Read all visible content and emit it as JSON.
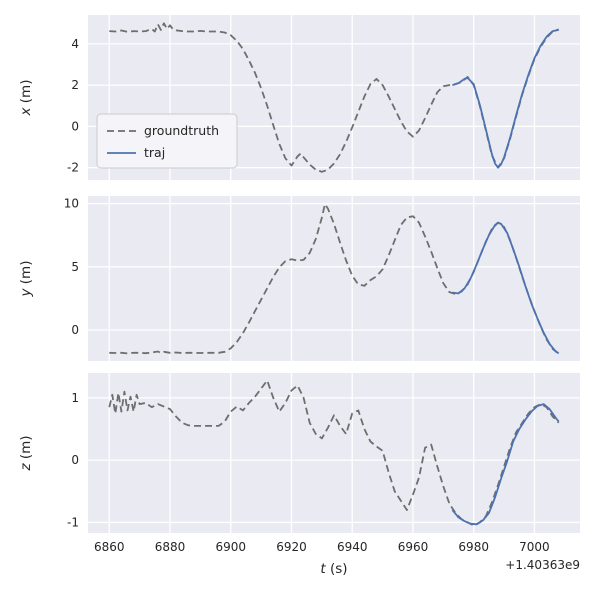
{
  "figure": {
    "background": "#ffffff",
    "axes_background": "#eaeaf2",
    "grid_color": "#ffffff",
    "text_color": "#262626",
    "xlabel_var": "t",
    "xlabel_unit": " (s)",
    "offset_text": "+1.40363e9",
    "x_range": [
      6853,
      7015
    ],
    "xticks": [
      6860,
      6880,
      6900,
      6920,
      6940,
      6960,
      6980,
      7000
    ]
  },
  "legend": {
    "entries": [
      {
        "label": "groundtruth",
        "color": "#6e6e6e",
        "dash": "7 4"
      },
      {
        "label": "traj",
        "color": "#4c72b0",
        "dash": ""
      }
    ]
  },
  "chart_data": [
    {
      "type": "line",
      "ylabel_var": "x",
      "ylabel_unit": " (m)",
      "yticks": [
        -2,
        0,
        2,
        4
      ],
      "y_range": [
        -2.6,
        5.4
      ],
      "series": [
        {
          "name": "groundtruth",
          "color": "#6e6e6e",
          "dash": "7 4",
          "t": [
            6860,
            6862,
            6864,
            6866,
            6868,
            6870,
            6872,
            6874,
            6875,
            6876,
            6877,
            6878,
            6879,
            6880,
            6881,
            6882,
            6884,
            6886,
            6888,
            6890,
            6892,
            6894,
            6896,
            6898,
            6900,
            6902,
            6904,
            6906,
            6908,
            6910,
            6912,
            6914,
            6916,
            6918,
            6920,
            6922,
            6923,
            6924,
            6926,
            6928,
            6930,
            6932,
            6934,
            6936,
            6938,
            6940,
            6942,
            6944,
            6946,
            6948,
            6950,
            6952,
            6954,
            6956,
            6958,
            6960,
            6962,
            6964,
            6966,
            6968,
            6970,
            6972,
            6974,
            6976,
            6978,
            6980,
            6982,
            6984,
            6986,
            6988,
            6990,
            6992,
            6994,
            6996,
            6998,
            7000,
            7002,
            7004,
            7006,
            7008
          ],
          "v": [
            4.62,
            4.6,
            4.65,
            4.58,
            4.62,
            4.6,
            4.62,
            4.72,
            4.6,
            4.95,
            4.68,
            5.0,
            4.72,
            4.9,
            4.7,
            4.66,
            4.62,
            4.6,
            4.6,
            4.63,
            4.6,
            4.6,
            4.6,
            4.55,
            4.42,
            4.15,
            3.75,
            3.2,
            2.6,
            1.85,
            1.0,
            0.05,
            -0.85,
            -1.55,
            -1.9,
            -1.45,
            -1.32,
            -1.5,
            -1.85,
            -2.1,
            -2.2,
            -2.1,
            -1.8,
            -1.35,
            -0.75,
            -0.05,
            0.7,
            1.45,
            2.05,
            2.3,
            2.0,
            1.45,
            0.85,
            0.25,
            -0.25,
            -0.5,
            -0.2,
            0.4,
            1.05,
            1.65,
            1.95,
            2.0,
            2.05,
            2.15,
            2.4,
            2.0,
            1.0,
            -0.2,
            -1.4,
            -2.0,
            -1.55,
            -0.6,
            0.5,
            1.55,
            2.45,
            3.25,
            3.85,
            4.3,
            4.6,
            4.7
          ]
        },
        {
          "name": "traj",
          "color": "#4c72b0",
          "dash": "",
          "t": [
            6973,
            6975,
            6977,
            6978,
            6980,
            6982,
            6984,
            6986,
            6987,
            6988,
            6989,
            6990,
            6992,
            6994,
            6996,
            6998,
            7000,
            7002,
            7004,
            7006,
            7008
          ],
          "v": [
            2.0,
            2.1,
            2.3,
            2.35,
            2.05,
            1.05,
            -0.15,
            -1.35,
            -1.8,
            -2.0,
            -1.85,
            -1.5,
            -0.55,
            0.55,
            1.6,
            2.5,
            3.3,
            3.9,
            4.35,
            4.62,
            4.68
          ]
        }
      ]
    },
    {
      "type": "line",
      "ylabel_var": "y",
      "ylabel_unit": " (m)",
      "yticks": [
        0,
        5,
        10
      ],
      "y_range": [
        -2.45,
        10.6
      ],
      "series": [
        {
          "name": "groundtruth",
          "color": "#6e6e6e",
          "dash": "7 4",
          "t": [
            6860,
            6862,
            6864,
            6866,
            6868,
            6870,
            6872,
            6874,
            6876,
            6877,
            6878,
            6880,
            6882,
            6884,
            6886,
            6888,
            6890,
            6892,
            6894,
            6896,
            6898,
            6900,
            6902,
            6904,
            6906,
            6908,
            6910,
            6912,
            6914,
            6916,
            6918,
            6920,
            6922,
            6924,
            6926,
            6928,
            6930,
            6931,
            6932,
            6934,
            6936,
            6938,
            6940,
            6942,
            6944,
            6946,
            6948,
            6950,
            6952,
            6954,
            6956,
            6958,
            6960,
            6962,
            6964,
            6966,
            6968,
            6970,
            6972,
            6974,
            6976,
            6978,
            6980,
            6982,
            6984,
            6986,
            6988,
            6990,
            6992,
            6994,
            6996,
            6998,
            7000,
            7002,
            7004,
            7006,
            7008
          ],
          "v": [
            -1.8,
            -1.82,
            -1.8,
            -1.85,
            -1.8,
            -1.8,
            -1.83,
            -1.78,
            -1.7,
            -1.82,
            -1.72,
            -1.8,
            -1.78,
            -1.82,
            -1.8,
            -1.8,
            -1.82,
            -1.8,
            -1.8,
            -1.8,
            -1.72,
            -1.45,
            -0.95,
            -0.25,
            0.6,
            1.5,
            2.4,
            3.3,
            4.2,
            4.95,
            5.45,
            5.6,
            5.5,
            5.55,
            6.1,
            7.2,
            8.9,
            9.95,
            9.6,
            8.4,
            6.9,
            5.5,
            4.3,
            3.6,
            3.5,
            3.95,
            4.25,
            4.8,
            5.9,
            7.1,
            8.3,
            8.9,
            9.0,
            8.5,
            7.4,
            6.2,
            4.9,
            3.7,
            3.0,
            2.85,
            3.05,
            3.6,
            4.6,
            5.8,
            7.0,
            8.0,
            8.5,
            8.15,
            7.1,
            5.7,
            4.2,
            2.8,
            1.5,
            0.3,
            -0.75,
            -1.5,
            -1.85
          ]
        },
        {
          "name": "traj",
          "color": "#4c72b0",
          "dash": "",
          "t": [
            6973,
            6975,
            6977,
            6979,
            6981,
            6983,
            6985,
            6987,
            6988,
            6989,
            6991,
            6993,
            6995,
            6997,
            6999,
            7001,
            7003,
            7005,
            7007,
            7008
          ],
          "v": [
            2.95,
            2.9,
            3.3,
            4.1,
            5.2,
            6.4,
            7.5,
            8.3,
            8.5,
            8.4,
            7.7,
            6.4,
            5.0,
            3.5,
            2.1,
            0.9,
            -0.2,
            -1.1,
            -1.7,
            -1.85
          ]
        }
      ]
    },
    {
      "type": "line",
      "ylabel_var": "z",
      "ylabel_unit": " (m)",
      "yticks": [
        -1,
        0,
        1
      ],
      "y_range": [
        -1.17,
        1.4
      ],
      "series": [
        {
          "name": "groundtruth",
          "color": "#6e6e6e",
          "dash": "7 4",
          "t": [
            6860,
            6861,
            6862,
            6863,
            6864,
            6865,
            6866,
            6867,
            6868,
            6869,
            6870,
            6872,
            6874,
            6876,
            6878,
            6880,
            6882,
            6884,
            6886,
            6888,
            6890,
            6892,
            6894,
            6896,
            6898,
            6900,
            6902,
            6904,
            6906,
            6908,
            6910,
            6912,
            6914,
            6916,
            6918,
            6920,
            6922,
            6924,
            6926,
            6928,
            6930,
            6932,
            6934,
            6936,
            6938,
            6940,
            6942,
            6944,
            6946,
            6948,
            6950,
            6952,
            6954,
            6956,
            6958,
            6960,
            6962,
            6964,
            6966,
            6968,
            6970,
            6972,
            6974,
            6976,
            6978,
            6980,
            6982,
            6984,
            6986,
            6988,
            6990,
            6992,
            6994,
            6996,
            6998,
            7000,
            7002,
            7004,
            7006,
            7008
          ],
          "v": [
            0.85,
            1.05,
            0.75,
            1.08,
            0.78,
            1.1,
            0.8,
            1.02,
            0.78,
            1.05,
            0.9,
            0.92,
            0.85,
            0.9,
            0.86,
            0.82,
            0.7,
            0.6,
            0.56,
            0.55,
            0.55,
            0.55,
            0.55,
            0.55,
            0.62,
            0.78,
            0.86,
            0.8,
            0.92,
            1.02,
            1.15,
            1.28,
            1.0,
            0.78,
            0.92,
            1.12,
            1.2,
            1.0,
            0.6,
            0.42,
            0.35,
            0.52,
            0.72,
            0.55,
            0.42,
            0.75,
            0.8,
            0.5,
            0.3,
            0.22,
            0.15,
            -0.2,
            -0.5,
            -0.65,
            -0.8,
            -0.55,
            -0.28,
            0.2,
            0.25,
            -0.1,
            -0.42,
            -0.7,
            -0.85,
            -0.95,
            -1.0,
            -1.05,
            -1.0,
            -0.9,
            -0.68,
            -0.4,
            -0.1,
            0.2,
            0.45,
            0.6,
            0.75,
            0.85,
            0.9,
            0.85,
            0.7,
            0.6
          ]
        },
        {
          "name": "traj",
          "color": "#4c72b0",
          "dash": "",
          "t": [
            6973,
            6975,
            6977,
            6979,
            6981,
            6983,
            6985,
            6987,
            6989,
            6991,
            6993,
            6995,
            6997,
            6999,
            7001,
            7003,
            7005,
            7007,
            7008
          ],
          "v": [
            -0.8,
            -0.92,
            -0.98,
            -1.02,
            -1.03,
            -0.97,
            -0.85,
            -0.6,
            -0.3,
            -0.02,
            0.3,
            0.5,
            0.65,
            0.78,
            0.87,
            0.9,
            0.82,
            0.68,
            0.62
          ]
        }
      ]
    }
  ]
}
